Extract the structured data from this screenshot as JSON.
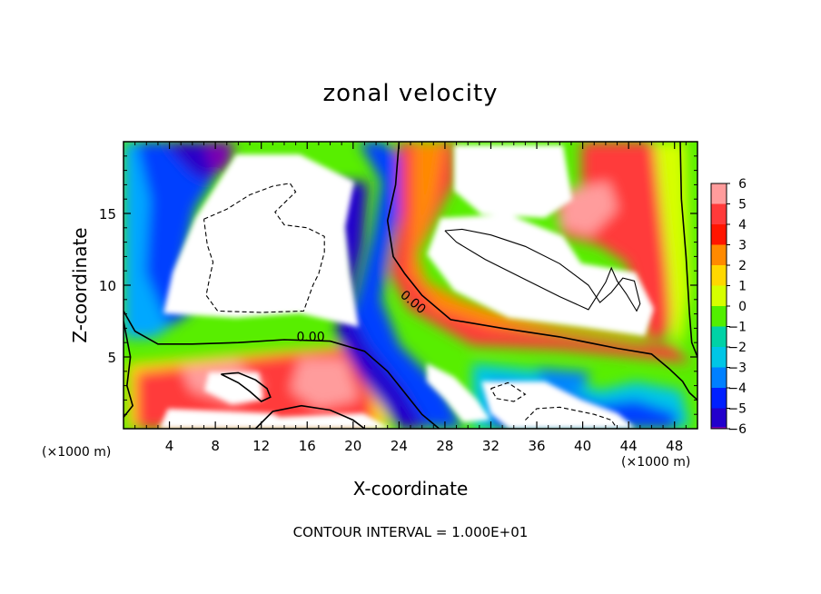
{
  "chart_data": {
    "type": "heatmap",
    "title": "zonal velocity",
    "xlabel": "X-coordinate",
    "ylabel": "Z-coordinate",
    "x_unit": "(×1000 m)",
    "xlim": [
      0,
      50
    ],
    "ylim": [
      0,
      20
    ],
    "x_ticks": [
      4,
      8,
      12,
      16,
      20,
      24,
      28,
      32,
      36,
      40,
      44,
      48
    ],
    "y_ticks": [
      5,
      10,
      15
    ],
    "colorbar": {
      "ticks": [
        6,
        5,
        4,
        3,
        2,
        1,
        0,
        -1,
        -2,
        -3,
        -4,
        -5,
        -6
      ],
      "colors": [
        "#ff9c9c",
        "#ff3a3a",
        "#ff1500",
        "#ff8a00",
        "#ffd800",
        "#d6ff00",
        "#52ef00",
        "#00d2a6",
        "#00c6e6",
        "#0080ff",
        "#0020ff",
        "#2200cc",
        "#7b00b0"
      ]
    },
    "contour_labels": [
      {
        "text": "0.00",
        "x": 16.3,
        "y": 6.1
      },
      {
        "text": "0.00",
        "x": 25.0,
        "y": 8.6
      }
    ],
    "contour_interval_text": "CONTOUR INTERVAL = 1.000E+01",
    "contours": [
      {
        "level": 0,
        "style": "solid",
        "points": [
          [
            0,
            8.2
          ],
          [
            1,
            6.8
          ],
          [
            3,
            5.9
          ],
          [
            6,
            5.9
          ],
          [
            10,
            6.0
          ],
          [
            14,
            6.2
          ],
          [
            18,
            6.1
          ],
          [
            21,
            5.4
          ],
          [
            23,
            4.0
          ],
          [
            24.5,
            2.5
          ],
          [
            26,
            1.0
          ],
          [
            27.5,
            0
          ]
        ]
      },
      {
        "level": 0,
        "style": "solid",
        "points": [
          [
            24,
            20
          ],
          [
            23.7,
            17
          ],
          [
            23,
            14.5
          ],
          [
            23.5,
            12
          ],
          [
            24.5,
            10.8
          ],
          [
            26,
            9.3
          ],
          [
            28.5,
            7.6
          ],
          [
            33,
            7.0
          ],
          [
            38,
            6.4
          ],
          [
            43,
            5.6
          ],
          [
            46,
            5.2
          ],
          [
            47.5,
            4.2
          ],
          [
            48.7,
            3.3
          ],
          [
            49.3,
            2.5
          ],
          [
            50,
            2.0
          ]
        ]
      },
      {
        "level": 0,
        "style": "solid",
        "points": [
          [
            48.5,
            20
          ],
          [
            48.6,
            16
          ],
          [
            49,
            12
          ],
          [
            49.3,
            8
          ],
          [
            49.5,
            6
          ],
          [
            50,
            5
          ]
        ]
      },
      {
        "level": 0,
        "style": "solid",
        "points": [
          [
            0,
            7.5
          ],
          [
            0.6,
            5.0
          ],
          [
            0.3,
            3.0
          ],
          [
            0.8,
            1.6
          ],
          [
            0,
            0.8
          ]
        ]
      },
      {
        "level": 10,
        "style": "solid",
        "points": [
          [
            28,
            13.8
          ],
          [
            29.5,
            13.9
          ],
          [
            32,
            13.5
          ],
          [
            35,
            12.7
          ],
          [
            38,
            11.5
          ],
          [
            40.5,
            10.0
          ],
          [
            41.5,
            8.8
          ],
          [
            42.5,
            9.5
          ],
          [
            43.5,
            10.5
          ],
          [
            44.5,
            10.3
          ],
          [
            45,
            8.7
          ],
          [
            44.7,
            8.2
          ],
          [
            43.8,
            9.4
          ],
          [
            43,
            10.3
          ],
          [
            42.5,
            11.2
          ],
          [
            42,
            10.2
          ],
          [
            40.5,
            8.3
          ],
          [
            38,
            9.2
          ],
          [
            35,
            10.4
          ],
          [
            31.5,
            11.8
          ],
          [
            29,
            13.0
          ],
          [
            28,
            13.8
          ]
        ]
      },
      {
        "level": 0,
        "style": "solid",
        "points": [
          [
            8.5,
            3.8
          ],
          [
            10,
            3.9
          ],
          [
            11.5,
            3.4
          ],
          [
            12.5,
            2.8
          ],
          [
            12.8,
            2.2
          ],
          [
            12,
            1.9
          ],
          [
            11,
            2.6
          ],
          [
            10,
            3.2
          ],
          [
            8.5,
            3.8
          ]
        ]
      },
      {
        "level": 0,
        "style": "solid",
        "points": [
          [
            11.5,
            0
          ],
          [
            13,
            1.2
          ],
          [
            15.5,
            1.6
          ],
          [
            18,
            1.3
          ],
          [
            20,
            0.6
          ],
          [
            21,
            0
          ]
        ]
      },
      {
        "level": -10,
        "style": "dashed",
        "points": [
          [
            7,
            14.6
          ],
          [
            9,
            15.3
          ],
          [
            11,
            16.3
          ],
          [
            13,
            16.9
          ],
          [
            14.5,
            17.1
          ],
          [
            15,
            16.5
          ],
          [
            13.2,
            15.1
          ],
          [
            14,
            14.2
          ],
          [
            16,
            14.0
          ],
          [
            17.5,
            13.4
          ],
          [
            17.5,
            12.3
          ],
          [
            17,
            10.8
          ],
          [
            16.5,
            10.0
          ],
          [
            15.7,
            8.2
          ],
          [
            12,
            8.1
          ],
          [
            8.2,
            8.2
          ],
          [
            7.2,
            9.3
          ],
          [
            7.5,
            10.5
          ],
          [
            7.8,
            11.6
          ],
          [
            7.3,
            12.8
          ],
          [
            7,
            14.6
          ]
        ]
      },
      {
        "level": -10,
        "style": "dashed",
        "points": [
          [
            32,
            2.8
          ],
          [
            33.5,
            3.2
          ],
          [
            35,
            2.4
          ],
          [
            34,
            1.9
          ],
          [
            32.5,
            2.1
          ],
          [
            32,
            2.8
          ]
        ]
      },
      {
        "level": -10,
        "style": "dashed",
        "points": [
          [
            35,
            0.6
          ],
          [
            36,
            1.4
          ],
          [
            38,
            1.5
          ],
          [
            41,
            1.0
          ],
          [
            42.5,
            0.6
          ],
          [
            43,
            0
          ]
        ]
      }
    ]
  }
}
